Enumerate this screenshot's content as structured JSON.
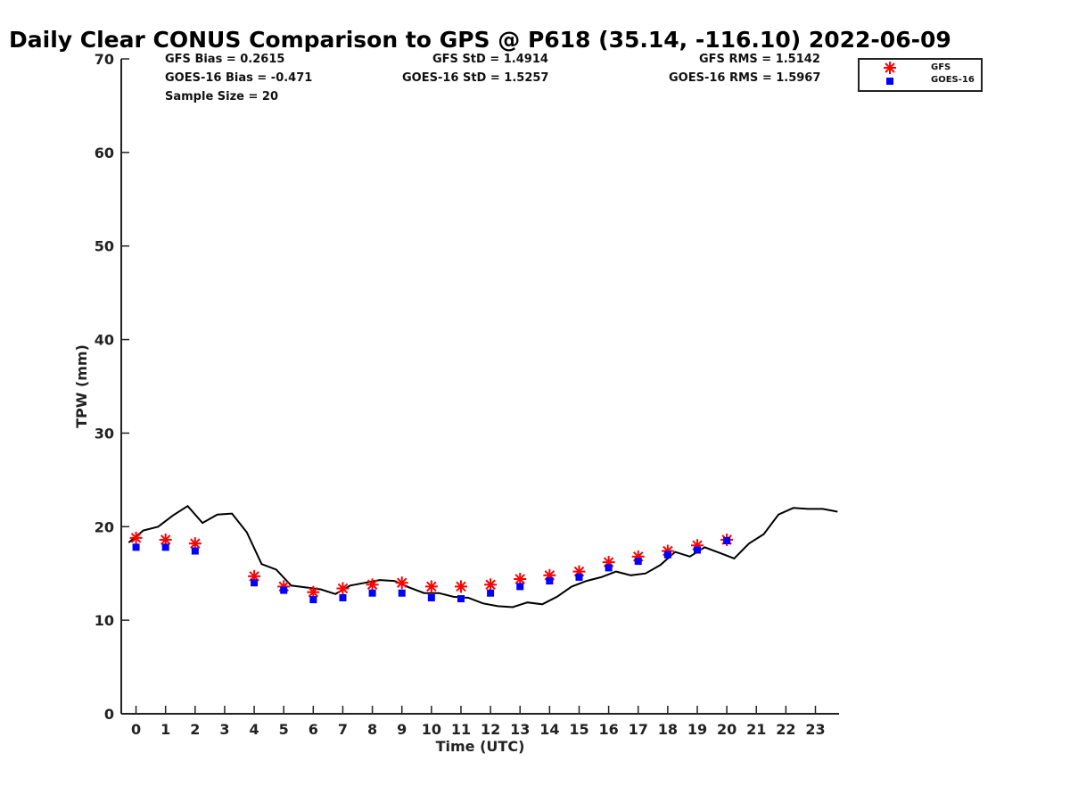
{
  "chart_data": {
    "type": "scatter",
    "title": "Daily Clear CONUS Comparison to GPS @ P618 (35.14, -116.10) 2022-06-09",
    "xlabel": "Time (UTC)",
    "ylabel": "TPW (mm)",
    "xlim": [
      -0.5,
      23.8
    ],
    "ylim": [
      0,
      70
    ],
    "x_ticks": [
      0,
      1,
      2,
      3,
      4,
      5,
      6,
      7,
      8,
      9,
      10,
      11,
      12,
      13,
      14,
      15,
      16,
      17,
      18,
      19,
      20,
      21,
      22,
      23
    ],
    "y_ticks": [
      0,
      10,
      20,
      30,
      40,
      50,
      60,
      70
    ],
    "legend_position": "top-right",
    "stats": {
      "gfs_bias": "GFS Bias = 0.2615",
      "goes_bias": "GOES-16 Bias = -0.471",
      "sample_size": "Sample Size = 20",
      "gfs_std": "GFS StD = 1.4914",
      "goes_std": "GOES-16 StD = 1.5257",
      "gfs_rms": "GFS RMS = 1.5142",
      "goes_rms": "GOES-16 RMS = 1.5967"
    },
    "series": [
      {
        "name": "GFS",
        "marker": "asterisk",
        "color": "#ff0000",
        "x": [
          0,
          1,
          2,
          4,
          5,
          6,
          7,
          8,
          9,
          10,
          11,
          12,
          13,
          14,
          15,
          16,
          17,
          18,
          19,
          20
        ],
        "y": [
          18.8,
          18.6,
          18.2,
          14.7,
          13.6,
          13.0,
          13.4,
          13.8,
          14.0,
          13.6,
          13.6,
          13.8,
          14.4,
          14.8,
          15.2,
          16.2,
          16.8,
          17.4,
          18.0,
          18.6
        ]
      },
      {
        "name": "GOES-16",
        "marker": "square",
        "color": "#0000ff",
        "x": [
          0,
          1,
          2,
          4,
          5,
          6,
          7,
          8,
          9,
          10,
          11,
          12,
          13,
          14,
          15,
          16,
          17,
          18,
          19,
          20
        ],
        "y": [
          17.8,
          17.8,
          17.4,
          14.0,
          13.2,
          12.2,
          12.4,
          12.9,
          12.9,
          12.4,
          12.3,
          12.9,
          13.6,
          14.2,
          14.6,
          15.6,
          16.3,
          17.0,
          17.5,
          18.5
        ]
      },
      {
        "name": "GPS",
        "marker": "line",
        "color": "#000000",
        "x": [
          -0.25,
          0.25,
          0.75,
          1.25,
          1.75,
          2.25,
          2.75,
          3.25,
          3.75,
          4.25,
          4.75,
          5.25,
          5.75,
          6.25,
          6.75,
          7.25,
          7.75,
          8.25,
          8.75,
          9.25,
          9.75,
          10.25,
          10.75,
          11.25,
          11.75,
          12.25,
          12.75,
          13.25,
          13.75,
          14.25,
          14.75,
          15.25,
          15.75,
          16.25,
          16.75,
          17.25,
          17.75,
          18.25,
          18.75,
          19.25,
          19.75,
          20.25,
          20.75,
          21.25,
          21.75,
          22.25,
          22.75,
          23.25,
          23.75
        ],
        "y": [
          18.3,
          19.6,
          20.0,
          21.2,
          22.2,
          20.4,
          21.3,
          21.4,
          19.4,
          16.0,
          15.4,
          13.7,
          13.5,
          13.3,
          12.8,
          13.7,
          14.0,
          14.3,
          14.2,
          13.5,
          12.9,
          12.9,
          12.5,
          12.4,
          11.8,
          11.5,
          11.4,
          11.9,
          11.7,
          12.5,
          13.6,
          14.2,
          14.6,
          15.2,
          14.8,
          15.0,
          15.9,
          17.3,
          16.8,
          17.8,
          17.2,
          16.6,
          18.2,
          19.2,
          21.3,
          22.0,
          21.9,
          21.9,
          21.6
        ]
      }
    ]
  }
}
